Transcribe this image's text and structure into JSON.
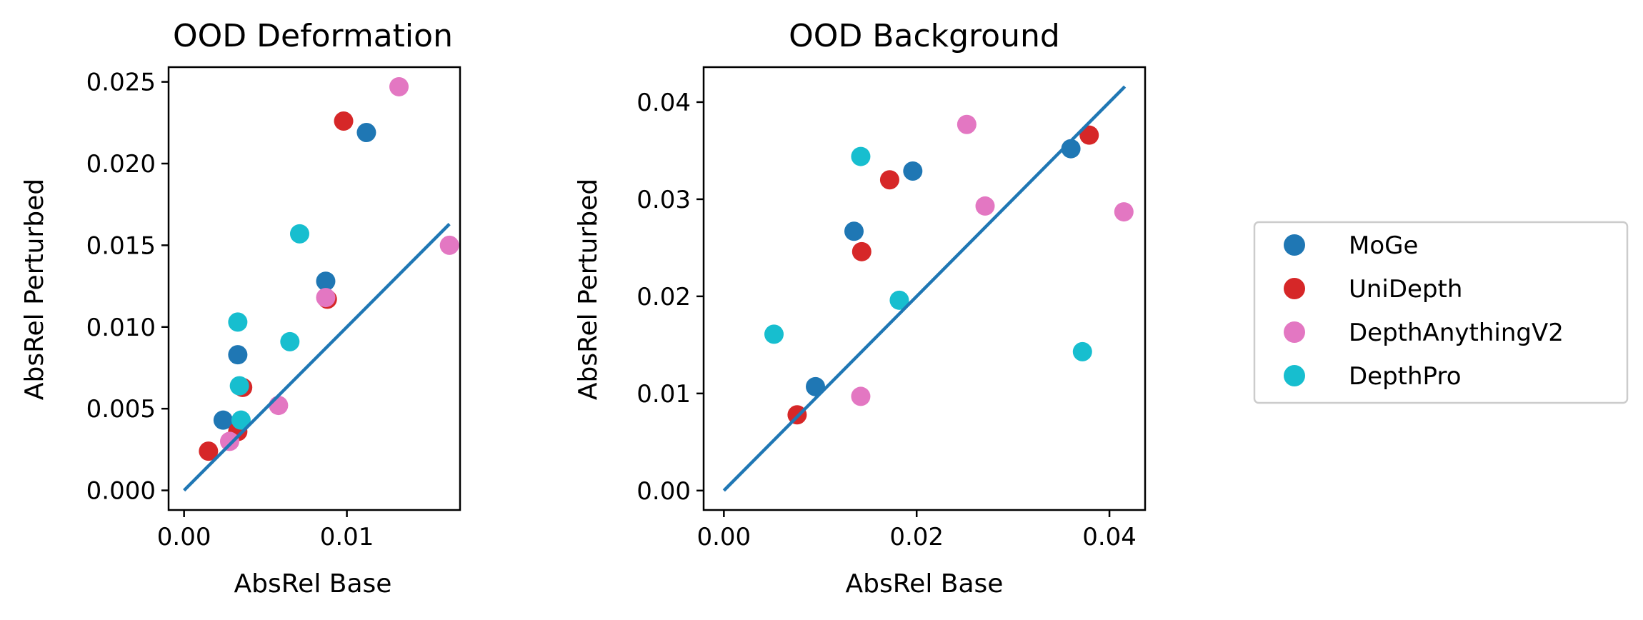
{
  "legend": {
    "items": [
      {
        "label": "MoGe",
        "color": "#1f77b4"
      },
      {
        "label": "UniDepth",
        "color": "#d62728"
      },
      {
        "label": "DepthAnythingV2",
        "color": "#e377c2"
      },
      {
        "label": "DepthPro",
        "color": "#17becf"
      }
    ]
  },
  "chart_data": [
    {
      "type": "scatter",
      "title": "OOD Deformation",
      "xlabel": "AbsRel Base",
      "ylabel": "AbsRel Perturbed",
      "xlim": [
        -0.00095,
        0.01695
      ],
      "ylim": [
        -0.0012,
        0.0259
      ],
      "xticks": [
        "0.00",
        "0.01"
      ],
      "xtick_values": [
        0.0,
        0.01
      ],
      "yticks": [
        "0.000",
        "0.005",
        "0.010",
        "0.015",
        "0.020",
        "0.025"
      ],
      "ytick_values": [
        0.0,
        0.005,
        0.01,
        0.015,
        0.02,
        0.025
      ],
      "reference_line": {
        "x": [
          0.0,
          0.0163
        ],
        "y": [
          0.0,
          0.0163
        ]
      },
      "series": [
        {
          "name": "MoGe",
          "color": "#1f77b4",
          "x": [
            0.0112,
            0.0087,
            0.0033,
            0.0024
          ],
          "y": [
            0.0219,
            0.0128,
            0.0083,
            0.0043
          ]
        },
        {
          "name": "UniDepth",
          "color": "#d62728",
          "x": [
            0.0098,
            0.0088,
            0.0036,
            0.0033,
            0.0015
          ],
          "y": [
            0.0226,
            0.0117,
            0.0063,
            0.0036,
            0.0024
          ]
        },
        {
          "name": "DepthAnythingV2",
          "color": "#e377c2",
          "x": [
            0.0132,
            0.0163,
            0.0087,
            0.0058,
            0.0028
          ],
          "y": [
            0.0247,
            0.015,
            0.0118,
            0.0052,
            0.003
          ]
        },
        {
          "name": "DepthPro",
          "color": "#17becf",
          "x": [
            0.0071,
            0.0065,
            0.0033,
            0.0034,
            0.0035
          ],
          "y": [
            0.0157,
            0.0091,
            0.0103,
            0.0064,
            0.0043
          ]
        }
      ]
    },
    {
      "type": "scatter",
      "title": "OOD Background",
      "xlabel": "AbsRel Base",
      "ylabel": "AbsRel Perturbed",
      "xlim": [
        -0.0021,
        0.0437
      ],
      "ylim": [
        -0.002,
        0.0436
      ],
      "xticks": [
        "0.00",
        "0.02",
        "0.04"
      ],
      "xtick_values": [
        0.0,
        0.02,
        0.04
      ],
      "yticks": [
        "0.00",
        "0.01",
        "0.02",
        "0.03",
        "0.04"
      ],
      "ytick_values": [
        0.0,
        0.01,
        0.02,
        0.03,
        0.04
      ],
      "reference_line": {
        "x": [
          0.0,
          0.0416
        ],
        "y": [
          0.0,
          0.0416
        ]
      },
      "series": [
        {
          "name": "MoGe",
          "color": "#1f77b4",
          "x": [
            0.0196,
            0.0135,
            0.0095,
            0.036
          ],
          "y": [
            0.0329,
            0.0267,
            0.0107,
            0.0352
          ]
        },
        {
          "name": "UniDepth",
          "color": "#d62728",
          "x": [
            0.0172,
            0.0143,
            0.0076,
            0.0379
          ],
          "y": [
            0.032,
            0.0246,
            0.0078,
            0.0366
          ]
        },
        {
          "name": "DepthAnythingV2",
          "color": "#e377c2",
          "x": [
            0.0252,
            0.0271,
            0.0415,
            0.0142
          ],
          "y": [
            0.0377,
            0.0293,
            0.0287,
            0.0097
          ]
        },
        {
          "name": "DepthPro",
          "color": "#17becf",
          "x": [
            0.0142,
            0.0182,
            0.0052,
            0.0372
          ],
          "y": [
            0.0344,
            0.0196,
            0.0161,
            0.0143
          ]
        }
      ]
    }
  ]
}
